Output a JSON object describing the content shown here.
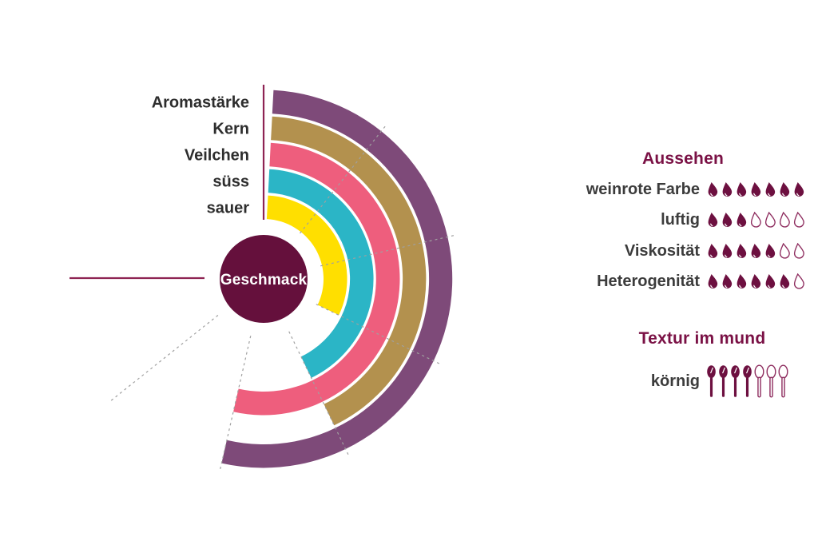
{
  "chart_data": {
    "type": "radial_bar",
    "center_label": "Geschmack",
    "max": 7,
    "angle_range_deg": 270,
    "grid_step_units": 1,
    "categories": [
      "Aromastärke",
      "Kern",
      "Veilchen",
      "süss",
      "sauer"
    ],
    "values": [
      5,
      4,
      5,
      4,
      3
    ],
    "ring_order": "first category is outermost ring",
    "ring_colors": [
      "#7e4a79",
      "#b3914e",
      "#ee5e7d",
      "#2bb5c6",
      "#ffdf00"
    ],
    "legend_position": "left of chart, one label per ring"
  },
  "aussehen": {
    "title": "Aussehen",
    "icon": "drop-icon",
    "max": 7,
    "rows": [
      {
        "label": "weinrote Farbe",
        "value": 7
      },
      {
        "label": "luftig",
        "value": 3
      },
      {
        "label": "Viskosität",
        "value": 5
      },
      {
        "label": "Heterogenität",
        "value": 6
      }
    ]
  },
  "textur": {
    "title": "Textur im mund",
    "icon": "spoon-icon",
    "max": 7,
    "rows": [
      {
        "label": "körnig",
        "value": 4
      }
    ]
  },
  "colors": {
    "center_circle": "#65103c",
    "heading_maroon": "#7a1145",
    "icon_filled": "#6d1040",
    "icon_outline": "#8e2d5f",
    "axis_line": "#8e2453",
    "gridline": "#a0a0a0",
    "category_text": "#2d2d2d",
    "row_text": "#3c3c3c",
    "center_text": "#ffffff"
  }
}
